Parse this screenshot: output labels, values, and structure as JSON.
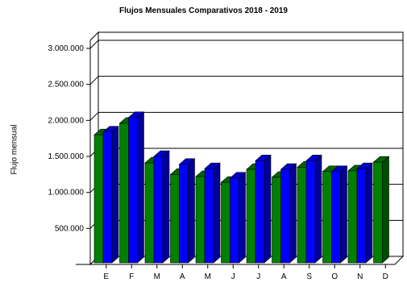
{
  "chart_data": {
    "type": "bar",
    "title": "Flujos Mensuales Comparativos 2018 - 2019",
    "ylabel": "Flujo mensual",
    "xlabel": "",
    "categories": [
      "E",
      "F",
      "M",
      "A",
      "M",
      "J",
      "J",
      "A",
      "S",
      "O",
      "N",
      "D"
    ],
    "series": [
      {
        "values": [
          1800000,
          1960000,
          1410000,
          1250000,
          1220000,
          1140000,
          1320000,
          1210000,
          1350000,
          1290000,
          1300000,
          1420000
        ],
        "color": "#008000"
      },
      {
        "values": [
          1840000,
          2040000,
          1500000,
          1390000,
          1330000,
          1200000,
          1440000,
          1320000,
          1440000,
          1290000,
          1330000,
          null
        ],
        "color": "#0000ff"
      }
    ],
    "ylim": [
      0,
      3000000
    ],
    "yticks": [
      "3.000.000",
      "2.500.000",
      "2.000.000",
      "1.500.000",
      "1.000.000",
      "500.000"
    ],
    "ytick_values": [
      3000000,
      2500000,
      2000000,
      1500000,
      1000000,
      500000
    ],
    "grid": true,
    "legend": false
  }
}
